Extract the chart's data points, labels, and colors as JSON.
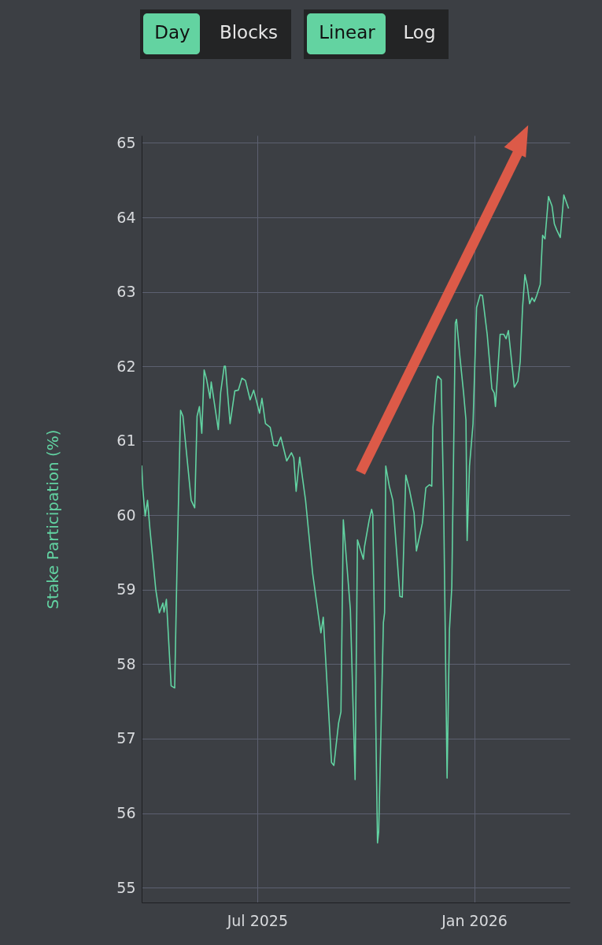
{
  "chart_data": {
    "type": "line",
    "ylabel": "Stake Participation (%)",
    "annotations": [
      "Day",
      "Blocks",
      "Linear",
      "Log"
    ],
    "x": [
      "2025-03-25",
      "2025-03-26",
      "2025-03-28",
      "2025-03-30",
      "2025-04-01",
      "2025-04-06",
      "2025-04-09",
      "2025-04-12",
      "2025-04-13",
      "2025-04-15",
      "2025-04-19",
      "2025-04-22",
      "2025-04-24",
      "2025-04-27",
      "2025-04-29",
      "2025-05-06",
      "2025-05-09",
      "2025-05-11",
      "2025-05-13",
      "2025-05-15",
      "2025-05-17",
      "2025-05-19",
      "2025-05-22",
      "2025-05-23",
      "2025-05-29",
      "2025-05-31",
      "2025-06-03",
      "2025-06-04",
      "2025-06-08",
      "2025-06-12",
      "2025-06-15",
      "2025-06-18",
      "2025-06-21",
      "2025-06-25",
      "2025-06-28",
      "2025-07-03",
      "2025-07-05",
      "2025-07-08",
      "2025-07-12",
      "2025-07-15",
      "2025-07-18",
      "2025-07-21",
      "2025-07-26",
      "2025-07-30",
      "2025-08-01",
      "2025-08-03",
      "2025-08-06",
      "2025-08-11",
      "2025-08-17",
      "2025-08-22",
      "2025-08-24",
      "2025-08-26",
      "2025-09-02",
      "2025-09-04",
      "2025-09-08",
      "2025-09-10",
      "2025-09-12",
      "2025-09-18",
      "2025-09-22",
      "2025-09-24",
      "2025-09-29",
      "2025-09-30",
      "2025-10-04",
      "2025-10-06",
      "2025-10-07",
      "2025-10-11",
      "2025-10-12",
      "2025-10-16",
      "2025-10-17",
      "2025-10-18",
      "2025-10-21",
      "2025-10-24",
      "2025-10-30",
      "2025-11-01",
      "2025-11-04",
      "2025-11-07",
      "2025-11-11",
      "2025-11-13",
      "2025-11-15",
      "2025-11-18",
      "2025-11-21",
      "2025-11-24",
      "2025-11-26",
      "2025-11-27",
      "2025-11-30",
      "2025-12-01",
      "2025-12-04",
      "2025-12-06",
      "2025-12-09",
      "2025-12-11",
      "2025-12-13",
      "2025-12-16",
      "2025-12-17",
      "2025-12-20",
      "2025-12-23",
      "2025-12-25",
      "2025-12-26",
      "2025-12-28",
      "2025-12-31",
      "2026-01-02",
      "2026-01-03",
      "2026-01-06",
      "2026-01-08",
      "2026-01-12",
      "2026-01-16",
      "2026-01-18",
      "2026-01-19",
      "2026-01-23",
      "2026-01-26",
      "2026-01-28",
      "2026-01-30",
      "2026-02-04",
      "2026-02-07",
      "2026-02-09",
      "2026-02-11",
      "2026-02-13",
      "2026-02-15",
      "2026-02-17",
      "2026-02-19",
      "2026-02-21",
      "2026-02-23",
      "2026-02-26",
      "2026-02-28",
      "2026-03-02",
      "2026-03-05",
      "2026-03-08",
      "2026-03-10",
      "2026-03-12",
      "2026-03-15",
      "2026-03-18",
      "2026-03-22"
    ],
    "series": [
      {
        "color": "#62d3a2",
        "values": [
          60.67,
          60.35,
          59.99,
          60.2,
          59.82,
          59.0,
          58.69,
          58.82,
          58.7,
          58.87,
          57.71,
          57.68,
          59.32,
          61.41,
          61.33,
          60.2,
          60.1,
          61.33,
          61.46,
          61.1,
          61.95,
          61.83,
          61.57,
          61.79,
          61.15,
          61.65,
          62.0,
          62.0,
          61.23,
          61.67,
          61.68,
          61.84,
          61.81,
          61.55,
          61.68,
          61.37,
          61.57,
          61.23,
          61.18,
          60.94,
          60.93,
          61.05,
          60.73,
          60.84,
          60.77,
          60.32,
          60.78,
          60.2,
          59.22,
          58.64,
          58.42,
          58.63,
          56.68,
          56.64,
          57.21,
          57.36,
          59.94,
          58.73,
          56.45,
          59.67,
          59.41,
          59.58,
          59.94,
          60.08,
          60.01,
          55.6,
          55.75,
          58.56,
          58.69,
          60.66,
          60.39,
          60.2,
          58.91,
          58.9,
          60.54,
          60.35,
          60.03,
          59.52,
          59.67,
          59.89,
          60.37,
          60.41,
          60.39,
          61.18,
          61.8,
          61.87,
          61.82,
          60.23,
          56.47,
          58.46,
          59.04,
          62.58,
          62.63,
          62.11,
          61.64,
          61.28,
          59.66,
          60.66,
          61.23,
          62.27,
          62.79,
          62.96,
          62.95,
          62.43,
          61.7,
          61.64,
          61.46,
          62.43,
          62.43,
          62.37,
          62.48,
          61.72,
          61.8,
          62.06,
          62.79,
          63.23,
          63.08,
          62.84,
          62.92,
          62.87,
          62.95,
          63.1,
          63.76,
          63.71,
          64.28,
          64.15,
          63.91,
          63.83,
          63.73,
          64.3,
          64.12
        ]
      }
    ],
    "xlim": [
      "2025-03-25",
      "2026-03-23"
    ],
    "xticks": [
      {
        "value": "2025-07-01",
        "label": "Jul 2025"
      },
      {
        "value": "2026-01-01",
        "label": "Jan 2026"
      }
    ],
    "ylim": [
      54.8,
      65.1
    ],
    "yticks": [
      55,
      56,
      57,
      58,
      59,
      60,
      61,
      62,
      63,
      64,
      65
    ],
    "grid": true,
    "marker": "none",
    "line_style": "solid"
  }
}
